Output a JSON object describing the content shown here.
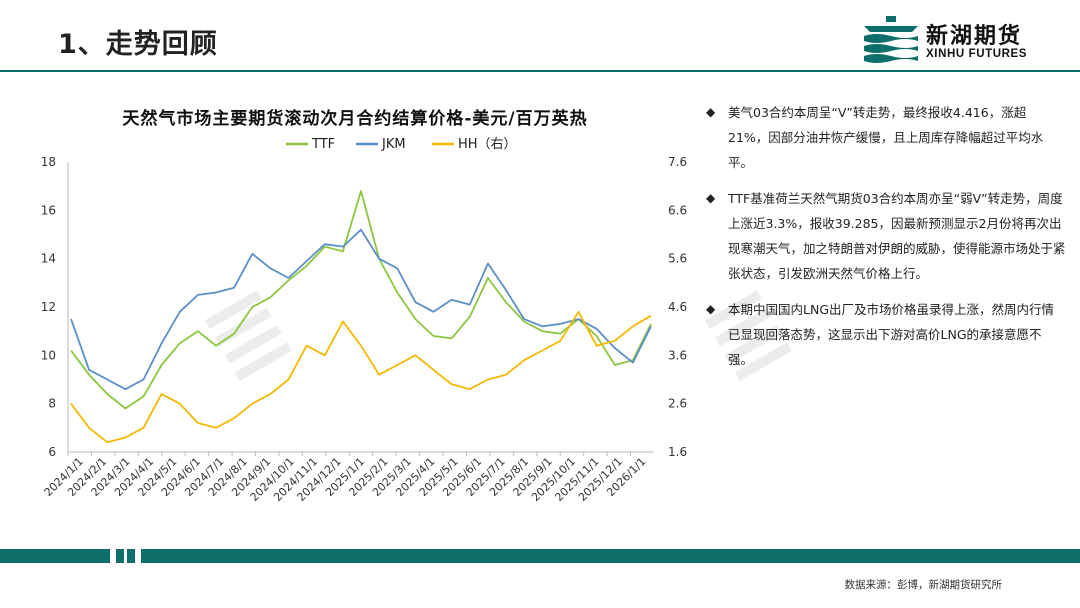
{
  "header": {
    "title": "1、走势回顾"
  },
  "logo": {
    "cn": "新湖期货",
    "en": "XINHU FUTURES"
  },
  "colors": {
    "ttf": "#8cc63f",
    "jkm": "#5b8fc8",
    "hh": "#f5b800",
    "accent": "#0d6e6a"
  },
  "chart_data": {
    "type": "line",
    "title": "天然气市场主要期货滚动次月合约结算价格-美元/百万英热",
    "x_ticks": [
      "2024/1/1",
      "2024/2/1",
      "2024/3/1",
      "2024/4/1",
      "2024/5/1",
      "2024/6/1",
      "2024/7/1",
      "2024/8/1",
      "2024/9/1",
      "2024/10/1",
      "2024/11/1",
      "2024/12/1",
      "2025/1/1",
      "2025/2/1",
      "2025/3/1",
      "2025/4/1",
      "2025/5/1",
      "2025/6/1",
      "2025/7/1",
      "2025/8/1",
      "2025/9/1",
      "2025/10/1",
      "2025/11/1",
      "2025/12/1",
      "2026/1/1"
    ],
    "y_left": {
      "min": 6,
      "max": 18,
      "ticks": [
        6,
        8,
        10,
        12,
        14,
        16,
        18
      ]
    },
    "y_right": {
      "min": 1.6,
      "max": 7.6,
      "ticks": [
        "1.6",
        "2.6",
        "3.6",
        "4.6",
        "5.6",
        "6.6",
        "7.6"
      ]
    },
    "legend_position": "top",
    "series": [
      {
        "name": "TTF",
        "axis": "left",
        "values": [
          10.2,
          9.2,
          8.4,
          7.8,
          8.3,
          9.6,
          10.5,
          11.0,
          10.4,
          10.9,
          12.0,
          12.4,
          13.1,
          13.7,
          14.5,
          14.3,
          16.8,
          14.0,
          12.6,
          11.5,
          10.8,
          10.7,
          11.6,
          13.2,
          12.2,
          11.4,
          11.0,
          10.9,
          11.5,
          10.8,
          9.6,
          9.8,
          11.3
        ]
      },
      {
        "name": "JKM",
        "axis": "left",
        "values": [
          11.5,
          9.4,
          9.0,
          8.6,
          9.0,
          10.5,
          11.8,
          12.5,
          12.6,
          12.8,
          14.2,
          13.6,
          13.2,
          13.9,
          14.6,
          14.5,
          15.2,
          14.0,
          13.6,
          12.2,
          11.8,
          12.3,
          12.1,
          13.8,
          12.7,
          11.5,
          11.2,
          11.3,
          11.5,
          11.1,
          10.3,
          9.7,
          11.2
        ]
      },
      {
        "name": "HH（右）",
        "axis": "right",
        "values": [
          2.6,
          2.1,
          1.8,
          1.9,
          2.1,
          2.8,
          2.6,
          2.2,
          2.1,
          2.3,
          2.6,
          2.8,
          3.1,
          3.8,
          3.6,
          4.3,
          3.8,
          3.2,
          3.4,
          3.6,
          3.3,
          3.0,
          2.9,
          3.1,
          3.2,
          3.5,
          3.7,
          3.9,
          4.5,
          3.8,
          3.9,
          4.2,
          4.42
        ]
      }
    ]
  },
  "bullets": [
    "美气03合约本周呈“V”转走势，最终报收4.416，涨超21%，因部分油井恢产缓慢，且上周库存降幅超过平均水平。",
    "TTF基准荷兰天然气期货03合约本周亦呈“弱V”转走势，周度上涨近3.3%，报收39.285，因最新预测显示2月份将再次出现寒潮天气，加之特朗普对伊朗的威胁，使得能源市场处于紧张状态，引发欧洲天然气价格上行。",
    "本期中国国内LNG出厂及市场价格虽录得上涨，然周内行情已显现回落态势，这显示出下游对高价LNG的承接意愿不强。"
  ],
  "bullet_mark": "◆",
  "footer": {
    "source": "数据来源：彭博，新湖期货研究所"
  }
}
